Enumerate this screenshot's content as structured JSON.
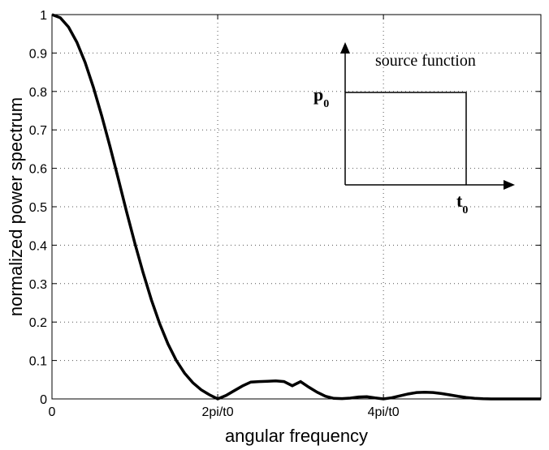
{
  "chart_data": {
    "type": "line",
    "title": "",
    "xlabel": "angular frequency",
    "ylabel": "normalized power spectrum",
    "xlim": [
      0,
      5.9
    ],
    "ylim": [
      0,
      1
    ],
    "x_ticks": [
      {
        "value": 0,
        "label": "0"
      },
      {
        "value": 2,
        "label": "2pi/t0"
      },
      {
        "value": 4,
        "label": "4pi/t0"
      }
    ],
    "y_ticks": [
      {
        "value": 0,
        "label": "0"
      },
      {
        "value": 0.1,
        "label": "0.1"
      },
      {
        "value": 0.2,
        "label": "0.2"
      },
      {
        "value": 0.3,
        "label": "0.3"
      },
      {
        "value": 0.4,
        "label": "0.4"
      },
      {
        "value": 0.5,
        "label": "0.5"
      },
      {
        "value": 0.6,
        "label": "0.6"
      },
      {
        "value": 0.7,
        "label": "0.7"
      },
      {
        "value": 0.8,
        "label": "0.8"
      },
      {
        "value": 0.9,
        "label": "0.9"
      },
      {
        "value": 1,
        "label": "1"
      }
    ],
    "grid": true,
    "series": [
      {
        "x": [
          0,
          0.1,
          0.2,
          0.3,
          0.4,
          0.5,
          0.6,
          0.7,
          0.8,
          0.9,
          1.0,
          1.1,
          1.2,
          1.3,
          1.4,
          1.5,
          1.6,
          1.7,
          1.8,
          1.9,
          2.0,
          2.1,
          2.2,
          2.3,
          2.4,
          2.5,
          2.6,
          2.7,
          2.8,
          2.9,
          3.0,
          3.1,
          3.2,
          3.3,
          3.4,
          3.5,
          3.6,
          3.7,
          3.8,
          3.9,
          4.0,
          4.1,
          4.2,
          4.3,
          4.4,
          4.5,
          4.6,
          4.7,
          4.8,
          4.9,
          5.0,
          5.1,
          5.2,
          5.3,
          5.4,
          5.5,
          5.6,
          5.7,
          5.8,
          5.9
        ],
        "y": [
          1.0,
          0.9918,
          0.9675,
          0.9283,
          0.8757,
          0.8106,
          0.7368,
          0.6569,
          0.5728,
          0.4873,
          0.4053,
          0.3282,
          0.2576,
          0.1956,
          0.143,
          0.1001,
          0.067,
          0.0421,
          0.0238,
          0.0108,
          0.0,
          0.0089,
          0.0215,
          0.0339,
          0.0439,
          0.045,
          0.0458,
          0.047,
          0.0451,
          0.0343,
          0.045,
          0.0305,
          0.0175,
          0.007,
          0.0015,
          0.0009,
          0.0021,
          0.0049,
          0.0058,
          0.0026,
          0.0,
          0.003,
          0.008,
          0.013,
          0.0165,
          0.0175,
          0.0165,
          0.014,
          0.0105,
          0.0068,
          0.0038,
          0.0016,
          0.0005,
          0.0001,
          0.0,
          0.0,
          0.0,
          0.0,
          0.0,
          0.0
        ]
      }
    ],
    "inset": {
      "title": "source function",
      "height_symbol": "p",
      "height_subscript": "0",
      "width_symbol": "t",
      "width_subscript": "0"
    }
  }
}
